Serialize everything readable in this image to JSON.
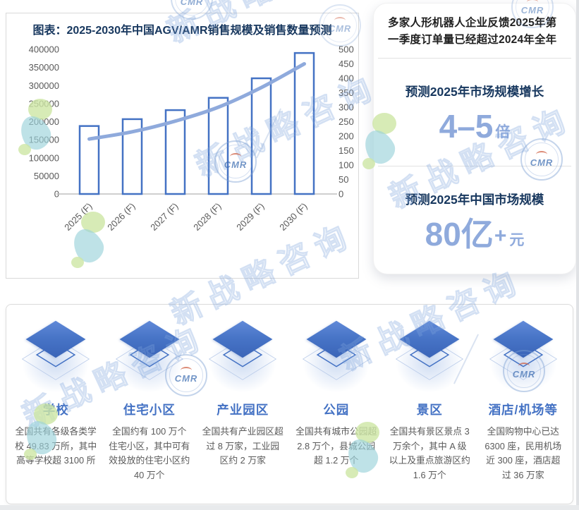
{
  "chart_data": {
    "type": "bar",
    "title": "图表：2025-2030年中国AGV/AMR销售规模及销售数量预测",
    "categories": [
      "2025 (F)",
      "2026 (F)",
      "2027 (F)",
      "2028 (F)",
      "2029 (F)",
      "2030 (F)"
    ],
    "series": [
      {
        "name": "sales-volume-bars",
        "type": "bar",
        "axis": "left",
        "values": [
          188000,
          207000,
          232000,
          266000,
          320000,
          390000
        ]
      },
      {
        "name": "sales-scale-line",
        "type": "line",
        "axis": "right",
        "values": [
          190,
          215,
          252,
          300,
          368,
          450
        ]
      }
    ],
    "left_axis": {
      "min": 0,
      "max": 400000,
      "step": 50000
    },
    "right_axis": {
      "min": 0,
      "max": 500,
      "step": 50
    },
    "grid": false,
    "legend": "none",
    "bar_color": "#4472C4",
    "line_color": "#8FAADC"
  },
  "right_card": {
    "headline": "多家人形机器人企业反馈2025年第一季度订单量已经超过2024年全年",
    "sections": [
      {
        "title": "预测2025年市场规模增长",
        "value": "4–5",
        "unit": "倍"
      },
      {
        "title": "预测2025年中国市场规模",
        "value": "80亿",
        "plus": "+",
        "unit": "元"
      }
    ]
  },
  "categories_panel": {
    "items": [
      {
        "label": "学校",
        "desc": "全国共有各级各类学校 49.83 万所，其中高等学校超 3100 所"
      },
      {
        "label": "住宅小区",
        "desc": "全国约有 100 万个住宅小区，其中可有效投放的住宅小区约 40 万个"
      },
      {
        "label": "产业园区",
        "desc": "全国共有产业园区超过 8 万家，工业园区约 2 万家"
      },
      {
        "label": "公园",
        "desc": "全国共有城市公园超 2.8 万个，县城公园超 1.2 万个"
      },
      {
        "label": "景区",
        "desc": "全国共有景区景点 3 万余个，其中 A 级以上及重点旅游区约 1.6 万个"
      },
      {
        "label": "酒店/机场等",
        "desc": "全国购物中心已达 6300 座，民用机场近 300 座，酒店超过 36 万家"
      }
    ]
  },
  "watermark": {
    "brand_text": "新战略咨询",
    "stamp_text": "CMR"
  },
  "colors": {
    "accent_blue": "#4472C4",
    "line_blue": "#8FAADC",
    "navy": "#17375E",
    "value_blue": "#8FAADC",
    "text_gray": "#595959"
  }
}
